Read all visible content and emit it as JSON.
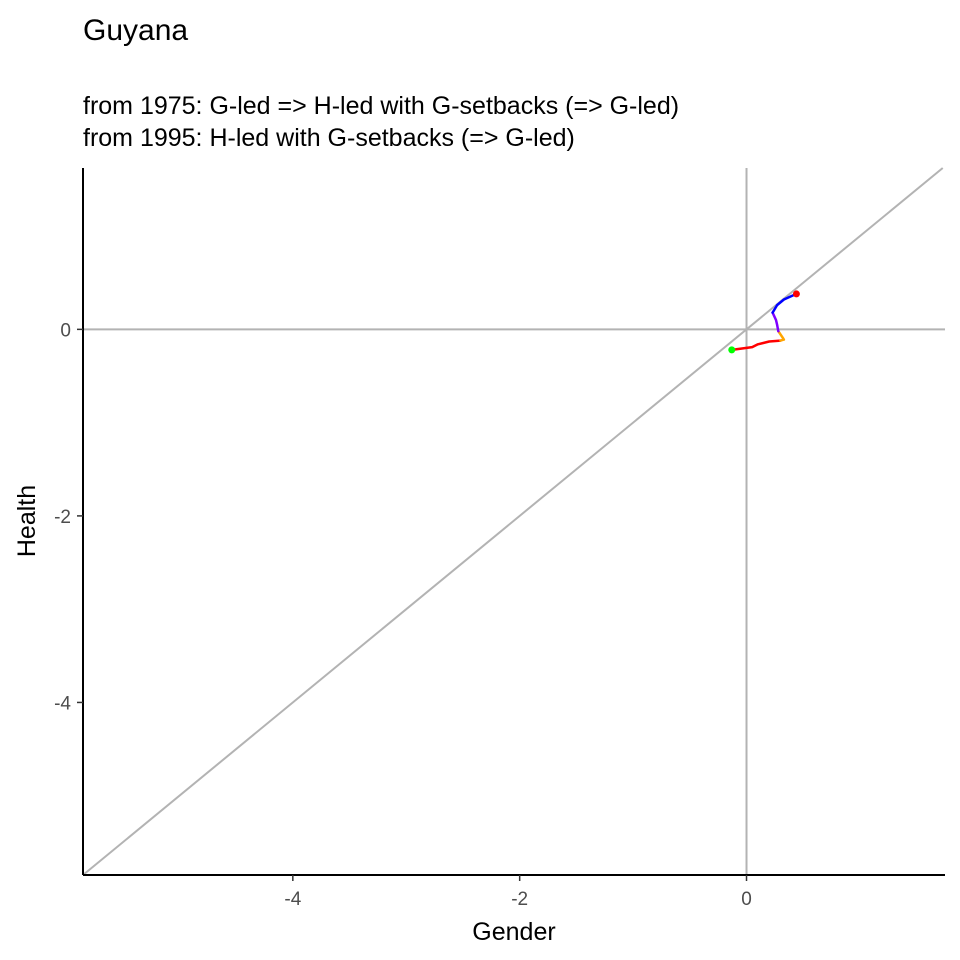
{
  "chart_data": {
    "type": "line",
    "title": "Guyana",
    "subtitle_lines": [
      "from 1975:  G-led => H-led with G-setbacks (=> G-led)",
      "from 1995:  H-led with G-setbacks (=> G-led)"
    ],
    "xlabel": "Gender",
    "ylabel": "Health",
    "xlim": [
      -5.85,
      1.75
    ],
    "ylim": [
      -5.85,
      1.73
    ],
    "xticks": [
      -4,
      -2,
      0
    ],
    "yticks": [
      0,
      -2,
      -4
    ],
    "grid": false,
    "reference_lines": {
      "diagonal": "y = x",
      "hline": 0,
      "vline": 0,
      "color": "#b3b3b3"
    },
    "series": [
      {
        "color": "#ff0000",
        "points": [
          [
            -0.13,
            -0.22
          ],
          [
            0.05,
            -0.19
          ],
          [
            0.1,
            -0.16
          ],
          [
            0.2,
            -0.13
          ],
          [
            0.3,
            -0.12
          ]
        ]
      },
      {
        "color": "#ffa500",
        "points": [
          [
            0.3,
            -0.12
          ],
          [
            0.33,
            -0.11
          ],
          [
            0.32,
            -0.09
          ],
          [
            0.28,
            -0.02
          ]
        ]
      },
      {
        "color": "#7f00ff",
        "points": [
          [
            0.28,
            -0.02
          ],
          [
            0.27,
            0.05
          ],
          [
            0.26,
            0.1
          ],
          [
            0.23,
            0.18
          ]
        ]
      },
      {
        "color": "#0000ff",
        "points": [
          [
            0.23,
            0.18
          ],
          [
            0.27,
            0.26
          ],
          [
            0.33,
            0.32
          ],
          [
            0.44,
            0.38
          ]
        ]
      }
    ],
    "start_point": {
      "x": -0.13,
      "y": -0.22,
      "color": "#00ff00"
    },
    "end_point": {
      "x": 0.44,
      "y": 0.38,
      "color": "#ff0000"
    }
  }
}
